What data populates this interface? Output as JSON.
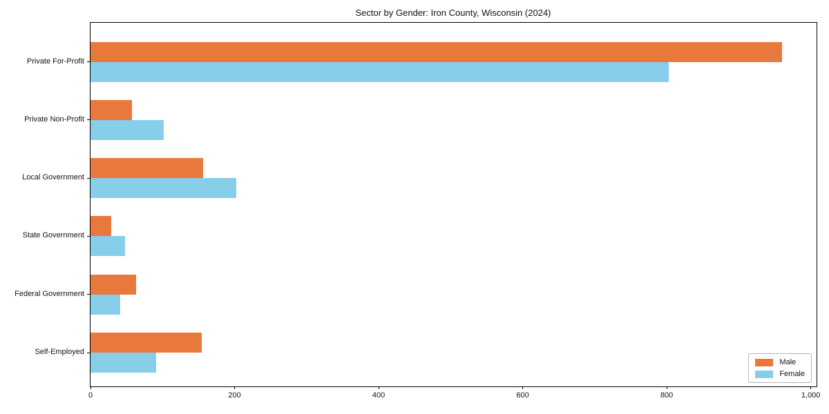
{
  "chart_data": {
    "type": "bar",
    "orientation": "horizontal",
    "title": "Sector by Gender: Iron County, Wisconsin (2024)",
    "categories": [
      "Private For-Profit",
      "Private Non-Profit",
      "Local Government",
      "State Government",
      "Federal Government",
      "Self-Employed"
    ],
    "series": [
      {
        "name": "Male",
        "color": "#e8783c",
        "values": [
          960,
          58,
          156,
          29,
          63,
          154
        ]
      },
      {
        "name": "Female",
        "color": "#87ceeb",
        "values": [
          803,
          102,
          202,
          48,
          41,
          91
        ]
      }
    ],
    "xlabel": "",
    "ylabel": "",
    "xlim": [
      0,
      1008
    ],
    "xticks": [
      0,
      200,
      400,
      600,
      800,
      1000
    ],
    "xtick_labels": [
      "0",
      "200",
      "400",
      "600",
      "800",
      "1,000"
    ],
    "grid": false,
    "legend": {
      "position": "lower right",
      "entries": [
        "Male",
        "Female"
      ]
    }
  }
}
